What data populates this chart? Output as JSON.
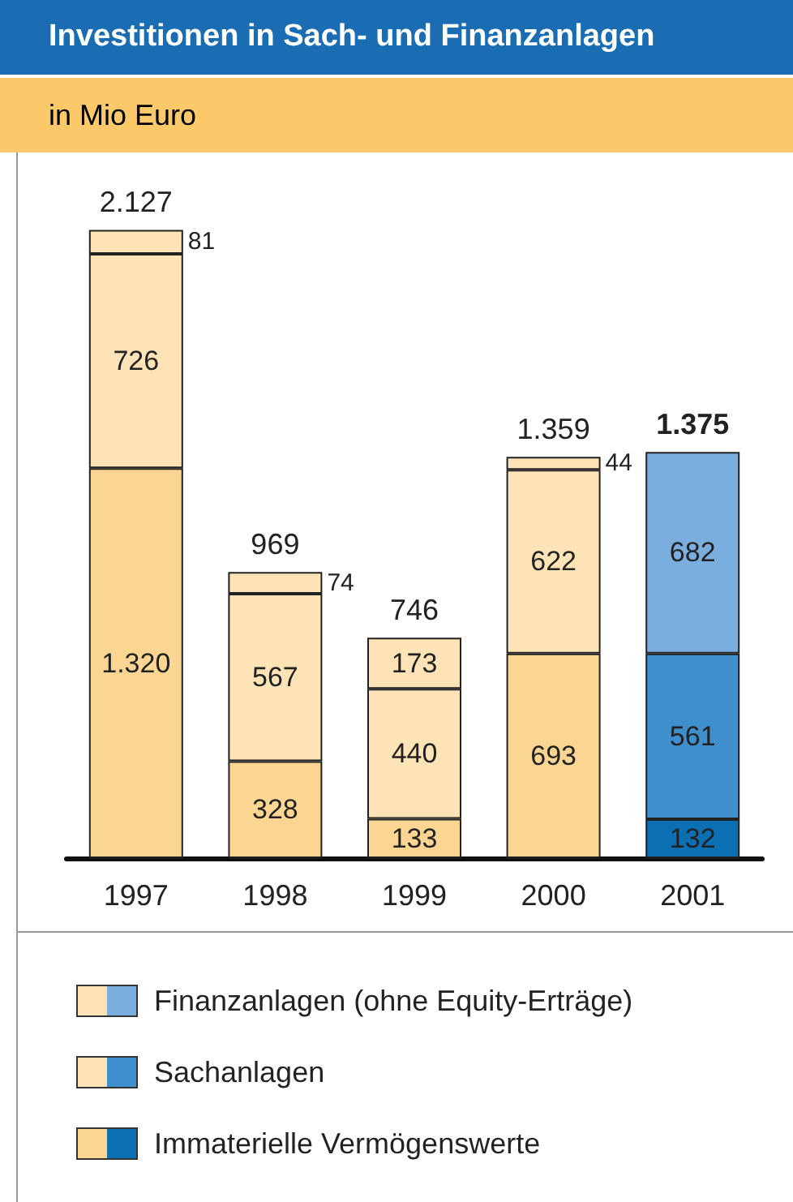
{
  "chart_data": {
    "type": "bar",
    "title": "Investitionen in Sach- und Finanzanlagen",
    "subtitle": "in Mio Euro",
    "stacked": true,
    "legend": "bottom",
    "categories": [
      "1997",
      "1998",
      "1999",
      "2000",
      "2001"
    ],
    "series": [
      {
        "name": "Immaterielle Vermögenswerte",
        "colors": [
          "#fbd693",
          "#fbd693",
          "#fbd693",
          "#fbd693",
          "#0b6fb3"
        ],
        "values": [
          1320,
          328,
          133,
          693,
          132
        ],
        "value_labels": [
          "1.320",
          "328",
          "133",
          "693",
          "132"
        ]
      },
      {
        "name": "Sachanlagen",
        "colors": [
          "#fde3b6",
          "#fde3b6",
          "#fde3b6",
          "#fde3b6",
          "#3f8fcd"
        ],
        "values": [
          726,
          567,
          440,
          622,
          561
        ],
        "value_labels": [
          "726",
          "567",
          "440",
          "622",
          "561"
        ]
      },
      {
        "name": "Finanzanlagen (ohne Equity-Erträge)",
        "colors": [
          "#fde3b6",
          "#fde3b6",
          "#fde3b6",
          "#fde3b6",
          "#7aaedf"
        ],
        "values": [
          81,
          74,
          173,
          44,
          682
        ],
        "value_labels": [
          "81",
          "74",
          "173",
          "44",
          "682"
        ]
      }
    ],
    "totals": [
      "2.127",
      "969",
      "746",
      "1.359",
      "1.375"
    ]
  }
}
